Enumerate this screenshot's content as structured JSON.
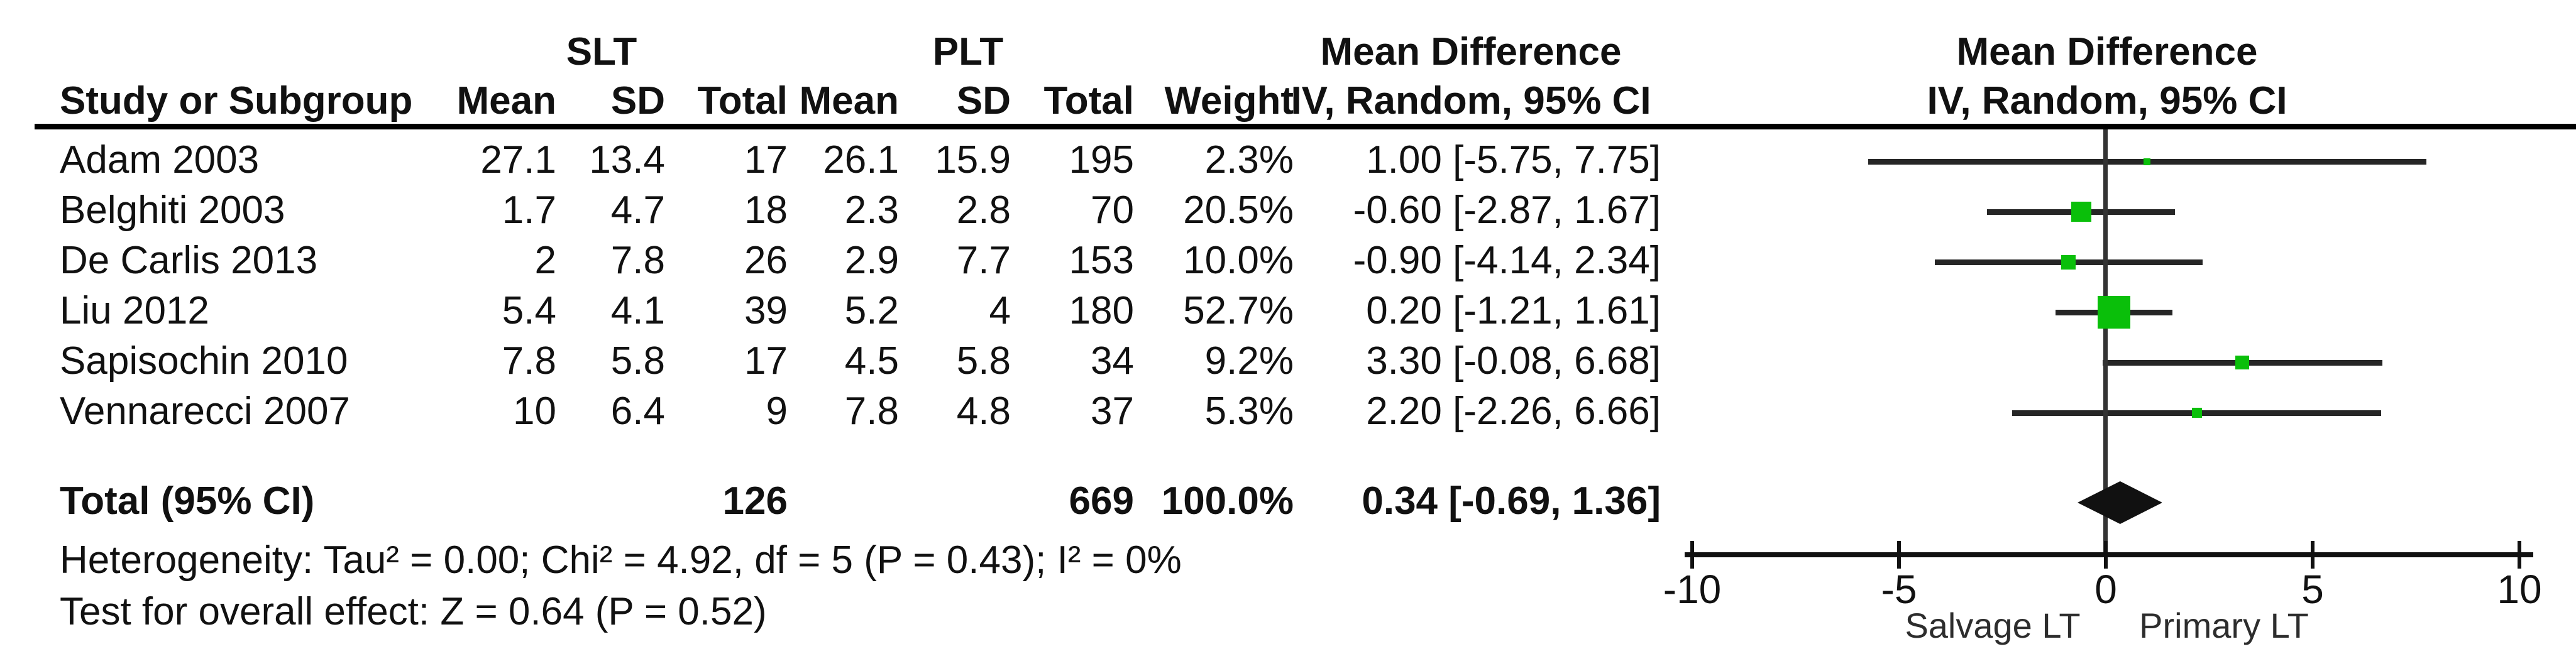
{
  "table": {
    "group1_label": "SLT",
    "group2_label": "PLT",
    "col_headers": {
      "study": "Study or Subgroup",
      "mean": "Mean",
      "sd": "SD",
      "total": "Total",
      "weight": "Weight"
    },
    "md_header": {
      "line1": "Mean Difference",
      "line2": "IV, Random, 95% CI"
    },
    "plot_header": {
      "line1": "Mean Difference",
      "line2": "IV, Random, 95% CI"
    },
    "rows": [
      {
        "study": "Adam 2003",
        "slt_mean": "27.1",
        "slt_sd": "13.4",
        "slt_total": "17",
        "plt_mean": "26.1",
        "plt_sd": "15.9",
        "plt_total": "195",
        "weight": "2.3%",
        "ci_text": "1.00 [-5.75, 7.75]"
      },
      {
        "study": "Belghiti 2003",
        "slt_mean": "1.7",
        "slt_sd": "4.7",
        "slt_total": "18",
        "plt_mean": "2.3",
        "plt_sd": "2.8",
        "plt_total": "70",
        "weight": "20.5%",
        "ci_text": "-0.60 [-2.87, 1.67]"
      },
      {
        "study": "De Carlis 2013",
        "slt_mean": "2",
        "slt_sd": "7.8",
        "slt_total": "26",
        "plt_mean": "2.9",
        "plt_sd": "7.7",
        "plt_total": "153",
        "weight": "10.0%",
        "ci_text": "-0.90 [-4.14, 2.34]"
      },
      {
        "study": "Liu 2012",
        "slt_mean": "5.4",
        "slt_sd": "4.1",
        "slt_total": "39",
        "plt_mean": "5.2",
        "plt_sd": "4",
        "plt_total": "180",
        "weight": "52.7%",
        "ci_text": "0.20 [-1.21, 1.61]"
      },
      {
        "study": "Sapisochin 2010",
        "slt_mean": "7.8",
        "slt_sd": "5.8",
        "slt_total": "17",
        "plt_mean": "4.5",
        "plt_sd": "5.8",
        "plt_total": "34",
        "weight": "9.2%",
        "ci_text": "3.30 [-0.08, 6.68]"
      },
      {
        "study": "Vennarecci 2007",
        "slt_mean": "10",
        "slt_sd": "6.4",
        "slt_total": "9",
        "plt_mean": "7.8",
        "plt_sd": "4.8",
        "plt_total": "37",
        "weight": "5.3%",
        "ci_text": "2.20 [-2.26, 6.66]"
      }
    ],
    "total_row": {
      "label": "Total (95% CI)",
      "slt_total": "126",
      "plt_total": "669",
      "weight": "100.0%",
      "ci_text": "0.34 [-0.69, 1.36]"
    },
    "heterogeneity": "Heterogeneity: Tau² = 0.00; Chi² = 4.92, df = 5 (P = 0.43); I² = 0%",
    "overall_effect": "Test for overall effect: Z = 0.64 (P = 0.52)"
  },
  "chart_data": {
    "type": "forest",
    "effect_measure": "Mean Difference",
    "method": "IV, Random, 95% CI",
    "studies": [
      {
        "name": "Adam 2003",
        "effect": 1.0,
        "ci_low": -5.75,
        "ci_high": 7.75,
        "weight_pct": 2.3
      },
      {
        "name": "Belghiti 2003",
        "effect": -0.6,
        "ci_low": -2.87,
        "ci_high": 1.67,
        "weight_pct": 20.5
      },
      {
        "name": "De Carlis 2013",
        "effect": -0.9,
        "ci_low": -4.14,
        "ci_high": 2.34,
        "weight_pct": 10.0
      },
      {
        "name": "Liu 2012",
        "effect": 0.2,
        "ci_low": -1.21,
        "ci_high": 1.61,
        "weight_pct": 52.7
      },
      {
        "name": "Sapisochin 2010",
        "effect": 3.3,
        "ci_low": -0.08,
        "ci_high": 6.68,
        "weight_pct": 9.2
      },
      {
        "name": "Vennarecci 2007",
        "effect": 2.2,
        "ci_low": -2.26,
        "ci_high": 6.66,
        "weight_pct": 5.3
      }
    ],
    "total": {
      "label": "Total (95% CI)",
      "effect": 0.34,
      "ci_low": -0.69,
      "ci_high": 1.36,
      "weight_pct": 100.0
    },
    "xlim": [
      -10,
      10
    ],
    "ticks": [
      {
        "value": -10,
        "label": "-10"
      },
      {
        "value": -5,
        "label": "-5"
      },
      {
        "value": 0,
        "label": "0"
      },
      {
        "value": 5,
        "label": "5"
      },
      {
        "value": 10,
        "label": "10"
      }
    ],
    "xlabel_left": "Salvage LT",
    "xlabel_right": "Primary LT",
    "colors": {
      "square": "#0abf0a",
      "diamond": "#111111",
      "line": "#262626",
      "axis": "#111111"
    }
  }
}
